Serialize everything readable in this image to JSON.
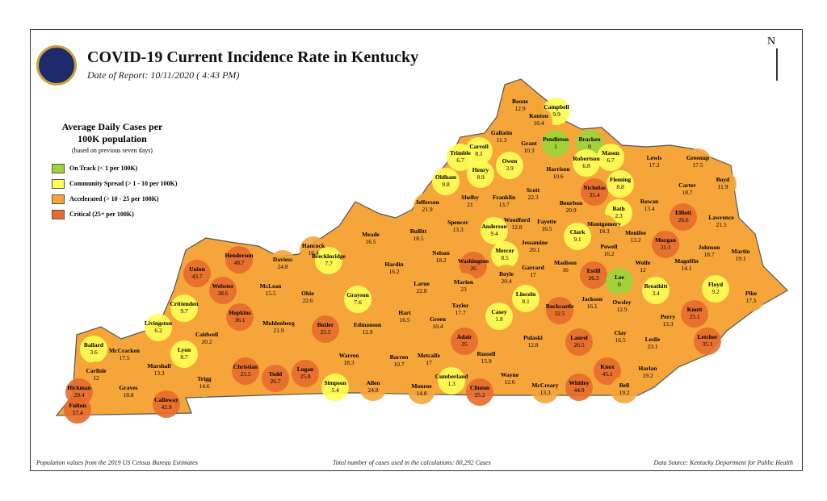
{
  "header": {
    "title": "COVID-19 Current Incidence Rate in Kentucky",
    "subtitle": "Date of Report: 10/11/2020 ( 4:43 PM)",
    "north": "N"
  },
  "legend": {
    "title": "Average Daily Cases per 100K population",
    "note": "(based on previous seven days)",
    "items": [
      {
        "label": "On Track (< 1 per 100K)",
        "color": "#9bd53c"
      },
      {
        "label": "Community Spread (> 1 - 10 per 100K)",
        "color": "#ffff55"
      },
      {
        "label": "Accelerated (> 10 - 25 per 100K)",
        "color": "#f6a53a"
      },
      {
        "label": "Critical (25+ per 100K)",
        "color": "#e66b2c"
      }
    ]
  },
  "footer": {
    "left": "Population values from the 2019 US Census Bureau Estimates",
    "center": "Total number of cases used in the calculations: 80,292 Cases",
    "right": "Data Source: Kentucky Department for Public Health"
  },
  "counties": [
    {
      "name": "Boone",
      "value": 12.9,
      "color": "#f6a53a"
    },
    {
      "name": "Campbell",
      "value": 9.9,
      "color": "#ffff55"
    },
    {
      "name": "Kenton",
      "value": 10.4,
      "color": "#f6a53a"
    },
    {
      "name": "Gallatin",
      "value": 11.3,
      "color": "#f6a53a"
    },
    {
      "name": "Pendleton",
      "value": 1,
      "color": "#9bd53c"
    },
    {
      "name": "Bracken",
      "value": 0,
      "color": "#9bd53c"
    },
    {
      "name": "Carroll",
      "value": 8.1,
      "color": "#ffff55"
    },
    {
      "name": "Grant",
      "value": 10.3,
      "color": "#f6a53a"
    },
    {
      "name": "Trimble",
      "value": 6.7,
      "color": "#ffff55"
    },
    {
      "name": "Mason",
      "value": 6.7,
      "color": "#ffff55"
    },
    {
      "name": "Robertson",
      "value": 6.8,
      "color": "#ffff55"
    },
    {
      "name": "Lewis",
      "value": 17.2,
      "color": "#f6a53a"
    },
    {
      "name": "Greenup",
      "value": 17.5,
      "color": "#f6a53a"
    },
    {
      "name": "Henry",
      "value": 8.9,
      "color": "#ffff55"
    },
    {
      "name": "Owen",
      "value": 3.9,
      "color": "#ffff55"
    },
    {
      "name": "Harrison",
      "value": 10.6,
      "color": "#f6a53a"
    },
    {
      "name": "Fleming",
      "value": 8.8,
      "color": "#ffff55"
    },
    {
      "name": "Oldham",
      "value": 9.8,
      "color": "#ffff55"
    },
    {
      "name": "Scott",
      "value": 22.3,
      "color": "#f6a53a"
    },
    {
      "name": "Nicholas",
      "value": 35.4,
      "color": "#e66b2c"
    },
    {
      "name": "Carter",
      "value": 18.7,
      "color": "#f6a53a"
    },
    {
      "name": "Boyd",
      "value": 11.9,
      "color": "#f6a53a"
    },
    {
      "name": "Jefferson",
      "value": 21.9,
      "color": "#f6a53a"
    },
    {
      "name": "Shelby",
      "value": 21,
      "color": "#f6a53a"
    },
    {
      "name": "Franklin",
      "value": 13.7,
      "color": "#f6a53a"
    },
    {
      "name": "Bourbon",
      "value": 20.9,
      "color": "#f6a53a"
    },
    {
      "name": "Bath",
      "value": 2.3,
      "color": "#ffff55"
    },
    {
      "name": "Rowan",
      "value": 13.4,
      "color": "#f6a53a"
    },
    {
      "name": "Elliott",
      "value": 26.6,
      "color": "#e66b2c"
    },
    {
      "name": "Lawrence",
      "value": 21.5,
      "color": "#f6a53a"
    },
    {
      "name": "Spencer",
      "value": 13.3,
      "color": "#f6a53a"
    },
    {
      "name": "Woodford",
      "value": 12.8,
      "color": "#f6a53a"
    },
    {
      "name": "Fayette",
      "value": 16.5,
      "color": "#f6a53a"
    },
    {
      "name": "Montgomery",
      "value": 18.3,
      "color": "#f6a53a"
    },
    {
      "name": "Anderson",
      "value": 9.4,
      "color": "#ffff55"
    },
    {
      "name": "Bullitt",
      "value": 18.5,
      "color": "#f6a53a"
    },
    {
      "name": "Clark",
      "value": 9.1,
      "color": "#ffff55"
    },
    {
      "name": "Menifee",
      "value": 13.2,
      "color": "#f6a53a"
    },
    {
      "name": "Morgan",
      "value": 31.1,
      "color": "#e66b2c"
    },
    {
      "name": "Jessamine",
      "value": 20.1,
      "color": "#f6a53a"
    },
    {
      "name": "Powell",
      "value": 16.2,
      "color": "#f6a53a"
    },
    {
      "name": "Johnson",
      "value": 18.7,
      "color": "#f6a53a"
    },
    {
      "name": "Meade",
      "value": 16.5,
      "color": "#f6a53a"
    },
    {
      "name": "Hancock",
      "value": 16.4,
      "color": "#f6a53a"
    },
    {
      "name": "Daviess",
      "value": 24.8,
      "color": "#f6a53a"
    },
    {
      "name": "Breckinridge",
      "value": 7.7,
      "color": "#ffff55"
    },
    {
      "name": "Henderson",
      "value": 48.7,
      "color": "#e66b2c"
    },
    {
      "name": "Union",
      "value": 43.7,
      "color": "#e66b2c"
    },
    {
      "name": "Nelson",
      "value": 18.2,
      "color": "#f6a53a"
    },
    {
      "name": "Mercer",
      "value": 8.5,
      "color": "#ffff55"
    },
    {
      "name": "Washington",
      "value": 26,
      "color": "#e66b2c"
    },
    {
      "name": "Hardin",
      "value": 16.2,
      "color": "#f6a53a"
    },
    {
      "name": "Garrard",
      "value": 17,
      "color": "#f6a53a"
    },
    {
      "name": "Madison",
      "value": 16,
      "color": "#f6a53a"
    },
    {
      "name": "Estill",
      "value": 26.3,
      "color": "#e66b2c"
    },
    {
      "name": "Wolfe",
      "value": 12,
      "color": "#f6a53a"
    },
    {
      "name": "Magoffin",
      "value": 14.1,
      "color": "#f6a53a"
    },
    {
      "name": "Martin",
      "value": 19.1,
      "color": "#f6a53a"
    },
    {
      "name": "Boyle",
      "value": 20.4,
      "color": "#f6a53a"
    },
    {
      "name": "Larue",
      "value": 22.8,
      "color": "#f6a53a"
    },
    {
      "name": "Marion",
      "value": 23,
      "color": "#f6a53a"
    },
    {
      "name": "Lee",
      "value": 0,
      "color": "#9bd53c"
    },
    {
      "name": "Breathitt",
      "value": 3.4,
      "color": "#ffff55"
    },
    {
      "name": "Floyd",
      "value": 9.2,
      "color": "#ffff55"
    },
    {
      "name": "Webster",
      "value": 38.6,
      "color": "#e66b2c"
    },
    {
      "name": "McLean",
      "value": 15.5,
      "color": "#f6a53a"
    },
    {
      "name": "Ohio",
      "value": 22.6,
      "color": "#f6a53a"
    },
    {
      "name": "Grayson",
      "value": 7.6,
      "color": "#ffff55"
    },
    {
      "name": "Lincoln",
      "value": 8.1,
      "color": "#ffff55"
    },
    {
      "name": "Jackson",
      "value": 16.1,
      "color": "#f6a53a"
    },
    {
      "name": "Owsley",
      "value": 12.9,
      "color": "#f6a53a"
    },
    {
      "name": "Pike",
      "value": 17.5,
      "color": "#f6a53a"
    },
    {
      "name": "Crittenden",
      "value": 9.7,
      "color": "#ffff55"
    },
    {
      "name": "Taylor",
      "value": 17.7,
      "color": "#f6a53a"
    },
    {
      "name": "Rockcastle",
      "value": 32.5,
      "color": "#e66b2c"
    },
    {
      "name": "Knott",
      "value": 25.1,
      "color": "#e66b2c"
    },
    {
      "name": "Hopkins",
      "value": 36.1,
      "color": "#e66b2c"
    },
    {
      "name": "Hart",
      "value": 16.5,
      "color": "#f6a53a"
    },
    {
      "name": "Casey",
      "value": 1.8,
      "color": "#ffff55"
    },
    {
      "name": "Perry",
      "value": 13.3,
      "color": "#f6a53a"
    },
    {
      "name": "Livingston",
      "value": 6.2,
      "color": "#ffff55"
    },
    {
      "name": "Muhlenberg",
      "value": 21.9,
      "color": "#f6a53a"
    },
    {
      "name": "Butler",
      "value": 25.5,
      "color": "#e66b2c"
    },
    {
      "name": "Edmonson",
      "value": 12.9,
      "color": "#f6a53a"
    },
    {
      "name": "Green",
      "value": 10.4,
      "color": "#f6a53a"
    },
    {
      "name": "Caldwell",
      "value": 20.2,
      "color": "#f6a53a"
    },
    {
      "name": "Lyon",
      "value": 8.7,
      "color": "#ffff55"
    },
    {
      "name": "Ballard",
      "value": 3.6,
      "color": "#ffff55"
    },
    {
      "name": "McCracken",
      "value": 17.5,
      "color": "#f6a53a"
    },
    {
      "name": "Adair",
      "value": 35,
      "color": "#e66b2c"
    },
    {
      "name": "Pulaski",
      "value": 12.8,
      "color": "#f6a53a"
    },
    {
      "name": "Laurel",
      "value": 26.5,
      "color": "#e66b2c"
    },
    {
      "name": "Clay",
      "value": 16.5,
      "color": "#f6a53a"
    },
    {
      "name": "Leslie",
      "value": 23.1,
      "color": "#f6a53a"
    },
    {
      "name": "Letcher",
      "value": 35.1,
      "color": "#e66b2c"
    },
    {
      "name": "Marshall",
      "value": 13.3,
      "color": "#f6a53a"
    },
    {
      "name": "Warren",
      "value": 18.3,
      "color": "#f6a53a"
    },
    {
      "name": "Barren",
      "value": 10.7,
      "color": "#f6a53a"
    },
    {
      "name": "Metcalfe",
      "value": 17,
      "color": "#f6a53a"
    },
    {
      "name": "Russell",
      "value": 15.9,
      "color": "#f6a53a"
    },
    {
      "name": "Christian",
      "value": 25.5,
      "color": "#e66b2c"
    },
    {
      "name": "Todd",
      "value": 26.7,
      "color": "#e66b2c"
    },
    {
      "name": "Logan",
      "value": 25.8,
      "color": "#e66b2c"
    },
    {
      "name": "Knox",
      "value": 45.1,
      "color": "#e66b2c"
    },
    {
      "name": "Harlan",
      "value": 19.2,
      "color": "#f6a53a"
    },
    {
      "name": "Carlisle",
      "value": 12,
      "color": "#f6a53a"
    },
    {
      "name": "Trigg",
      "value": 14.6,
      "color": "#f6a53a"
    },
    {
      "name": "Wayne",
      "value": 12.6,
      "color": "#f6a53a"
    },
    {
      "name": "Cumberland",
      "value": 1.3,
      "color": "#ffff55"
    },
    {
      "name": "Clinton",
      "value": 25.2,
      "color": "#e66b2c"
    },
    {
      "name": "Simpson",
      "value": 5.4,
      "color": "#ffff55"
    },
    {
      "name": "Allen",
      "value": 24.8,
      "color": "#f6a53a"
    },
    {
      "name": "Monroe",
      "value": 14.8,
      "color": "#f6a53a"
    },
    {
      "name": "McCreary",
      "value": 13.3,
      "color": "#f6a53a"
    },
    {
      "name": "Whitley",
      "value": 44.9,
      "color": "#e66b2c"
    },
    {
      "name": "Bell",
      "value": 19.2,
      "color": "#f6a53a"
    },
    {
      "name": "Graves",
      "value": 18.8,
      "color": "#f6a53a"
    },
    {
      "name": "Hickman",
      "value": 29.4,
      "color": "#e66b2c"
    },
    {
      "name": "Calloway",
      "value": 42.9,
      "color": "#e66b2c"
    },
    {
      "name": "Fulton",
      "value": 57.4,
      "color": "#e66b2c"
    }
  ]
}
